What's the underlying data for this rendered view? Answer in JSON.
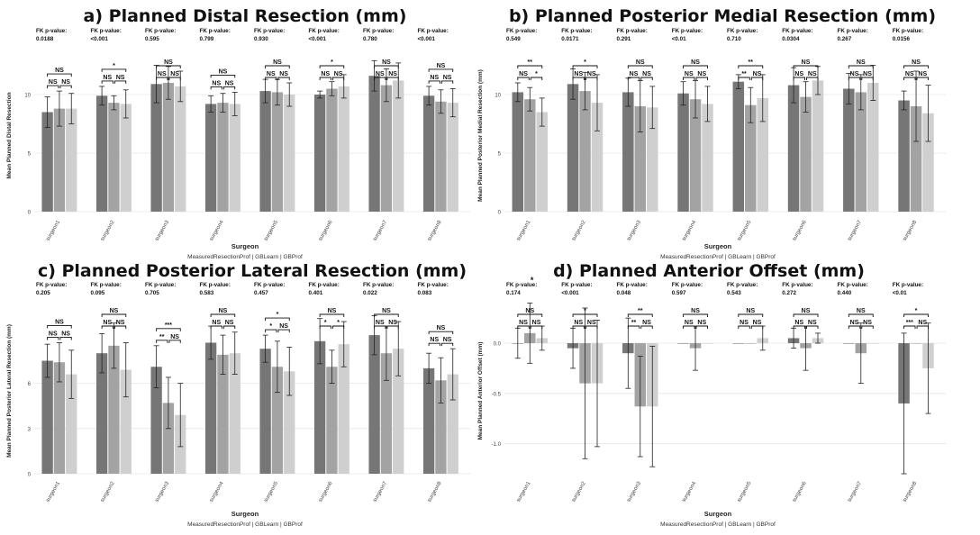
{
  "chart_data": [
    {
      "type": "bar",
      "title": "a) Planned Distal Resection (mm)",
      "xlabel": "Surgeon",
      "ylabel": "Mean Planned Distal Resection",
      "legend_text": "MeasuredResectionProf | GBLearn | GBProf",
      "categories": [
        "surgeon1",
        "surgeon2",
        "surgeon3",
        "surgeon4",
        "surgeon5",
        "surgeon6",
        "surgeon7",
        "surgeon8"
      ],
      "ylim": [
        0,
        13
      ],
      "yticks": [
        0,
        5,
        10
      ],
      "ytick_labels": [
        "0",
        "5",
        "10"
      ],
      "colors": [
        "#767676",
        "#a3a3a3",
        "#cfcfcf"
      ],
      "series": [
        {
          "name": "MeasuredResectionProf",
          "values": [
            8.5,
            9.9,
            10.9,
            9.2,
            10.3,
            10.0,
            11.6,
            9.9
          ],
          "err": [
            1.3,
            0.8,
            1.6,
            0.7,
            1.0,
            0.3,
            1.3,
            0.8
          ]
        },
        {
          "name": "GBLearn",
          "values": [
            8.8,
            9.3,
            11.0,
            9.3,
            10.2,
            10.5,
            10.8,
            9.4
          ],
          "err": [
            1.5,
            0.6,
            1.4,
            0.8,
            1.1,
            0.6,
            1.4,
            1.0
          ]
        },
        {
          "name": "GBProf",
          "values": [
            8.8,
            9.2,
            10.7,
            9.2,
            10.0,
            10.7,
            11.2,
            9.3
          ],
          "err": [
            1.3,
            1.2,
            1.3,
            1.0,
            1.0,
            1.0,
            1.5,
            1.2
          ]
        }
      ],
      "fk_labels": [
        "FK p-value:",
        "FK p-value:",
        "FK p-value:",
        "FK p-value:",
        "FK p-value:",
        "FK p-value:",
        "FK p-value:",
        "FK p-value:"
      ],
      "fk_values": [
        "0.0188",
        "<0.001",
        "0.595",
        "0.799",
        "0.930",
        "<0.001",
        "0.780",
        "<0.001"
      ],
      "sig": [
        [
          "NS",
          "NS",
          "NS"
        ],
        [
          "*",
          "NS",
          "NS"
        ],
        [
          "NS",
          "NS",
          "NS"
        ],
        [
          "NS",
          "NS",
          "NS"
        ],
        [
          "NS",
          "NS",
          "NS"
        ],
        [
          "*",
          "NS",
          "NS"
        ],
        [
          "NS",
          "NS",
          "NS"
        ],
        [
          "NS",
          "NS",
          "NS"
        ]
      ]
    },
    {
      "type": "bar",
      "title": "b) Planned Posterior Medial Resection (mm)",
      "xlabel": "Surgeon",
      "ylabel": "Mean Planned Posterior Medial Resection (mm)",
      "legend_text": "MeasuredResectionProf | GBLearn | GBProf",
      "categories": [
        "surgeon1",
        "surgeon2",
        "surgeon3",
        "surgeon4",
        "surgeon5",
        "surgeon6",
        "surgeon7",
        "surgeon8"
      ],
      "ylim": [
        0,
        13
      ],
      "yticks": [
        0,
        5,
        10
      ],
      "ytick_labels": [
        "0",
        "5",
        "10"
      ],
      "colors": [
        "#767676",
        "#a3a3a3",
        "#cfcfcf"
      ],
      "series": [
        {
          "name": "MeasuredResectionProf",
          "values": [
            10.2,
            10.9,
            10.2,
            10.1,
            11.1,
            10.8,
            10.5,
            9.5
          ],
          "err": [
            0.8,
            1.3,
            1.2,
            1.0,
            0.6,
            1.5,
            1.3,
            0.8
          ]
        },
        {
          "name": "GBLearn",
          "values": [
            9.6,
            10.3,
            9.0,
            9.6,
            9.1,
            9.8,
            10.2,
            9.0
          ],
          "err": [
            1.0,
            1.6,
            2.2,
            1.6,
            1.5,
            1.3,
            1.5,
            3.0
          ]
        },
        {
          "name": "GBProf",
          "values": [
            8.5,
            9.3,
            8.9,
            9.2,
            9.7,
            11.2,
            11.0,
            8.4
          ],
          "err": [
            1.2,
            2.4,
            1.8,
            1.5,
            2.0,
            1.2,
            1.5,
            2.4
          ]
        }
      ],
      "fk_labels": [
        "FK p-value:",
        "FK p-value:",
        "FK p-value:",
        "FK p-value:",
        "FK p-value:",
        "FK p-value:",
        "FK p-value:",
        "FK p-value:"
      ],
      "fk_values": [
        "0.549",
        "0.0171",
        "0.291",
        "<0.01",
        "0.710",
        "0.0304",
        "0.267",
        "0.0156"
      ],
      "sig": [
        [
          "**",
          "NS",
          "*"
        ],
        [
          "*",
          "NS",
          "NS"
        ],
        [
          "NS",
          "NS",
          "NS"
        ],
        [
          "NS",
          "NS",
          "NS"
        ],
        [
          "**",
          "**",
          "NS"
        ],
        [
          "NS",
          "NS",
          "NS"
        ],
        [
          "NS",
          "NS",
          "NS"
        ],
        [
          "NS",
          "NS",
          "NS"
        ]
      ]
    },
    {
      "type": "bar",
      "title": "c) Planned Posterior Lateral Resection (mm)",
      "xlabel": "Surgeon",
      "ylabel": "Mean Planned Posterior Lateral Resection (mm)",
      "legend_text": "MeasuredResectionProf | GBLearn | GBProf",
      "categories": [
        "surgeon1",
        "surgeon2",
        "surgeon3",
        "surgeon4",
        "surgeon5",
        "surgeon6",
        "surgeon7",
        "surgeon8"
      ],
      "ylim": [
        0,
        11
      ],
      "yticks": [
        0,
        3,
        6
      ],
      "ytick_labels": [
        "0",
        "3",
        "6"
      ],
      "colors": [
        "#767676",
        "#a3a3a3",
        "#cfcfcf"
      ],
      "series": [
        {
          "name": "MeasuredResectionProf",
          "values": [
            7.5,
            8.0,
            7.1,
            8.7,
            8.3,
            8.8,
            9.2,
            7.0
          ],
          "err": [
            1.1,
            1.3,
            1.4,
            1.1,
            0.9,
            1.5,
            1.3,
            1.0
          ]
        },
        {
          "name": "GBLearn",
          "values": [
            7.4,
            8.5,
            4.7,
            7.9,
            7.1,
            7.1,
            8.0,
            6.2
          ],
          "err": [
            1.3,
            1.5,
            1.7,
            1.3,
            1.7,
            1.1,
            1.8,
            1.5
          ]
        },
        {
          "name": "GBProf",
          "values": [
            6.6,
            6.9,
            3.9,
            8.0,
            6.8,
            8.6,
            8.3,
            6.6
          ],
          "err": [
            1.6,
            1.8,
            2.1,
            1.4,
            1.6,
            1.5,
            1.8,
            1.7
          ]
        }
      ],
      "fk_labels": [
        "FK p-value:",
        "FK p-value:",
        "FK p-value:",
        "FK p-value:",
        "FK p-value:",
        "FK p-value:",
        "FK p-value:",
        "FK p-value:"
      ],
      "fk_values": [
        "0.205",
        "0.095",
        "0.705",
        "0.583",
        "0.457",
        "0.401",
        "0.022",
        "0.083"
      ],
      "sig": [
        [
          "NS",
          "NS",
          "NS"
        ],
        [
          "NS",
          "NS",
          "NS"
        ],
        [
          "***",
          "**",
          "NS"
        ],
        [
          "NS",
          "NS",
          "NS"
        ],
        [
          "*",
          "*",
          "NS"
        ],
        [
          "NS",
          "*",
          "*"
        ],
        [
          "NS",
          "NS",
          "NS"
        ],
        [
          "NS",
          "NS",
          "NS"
        ]
      ]
    },
    {
      "type": "bar",
      "title": "d) Planned Anterior Offset (mm)",
      "xlabel": "Surgeon",
      "ylabel": "Mean Planned Anterior Offset (mm)",
      "legend_text": "MeasuredResectionProf | GBLearn | GBProf",
      "categories": [
        "surgeon1",
        "surgeon2",
        "surgeon3",
        "surgeon4",
        "surgeon5",
        "surgeon6",
        "surgeon7",
        "surgeon8"
      ],
      "ylim": [
        -1.3,
        0.35
      ],
      "yticks": [
        -1.0,
        -0.5,
        0.0
      ],
      "ytick_labels": [
        "-1.0",
        "-0.5",
        "0.0"
      ],
      "colors": [
        "#767676",
        "#a3a3a3",
        "#cfcfcf"
      ],
      "series": [
        {
          "name": "MeasuredResectionProf",
          "values": [
            0.0,
            -0.05,
            -0.1,
            0.0,
            0.0,
            0.05,
            0.0,
            -0.6
          ],
          "err": [
            0.15,
            0.2,
            0.35,
            0.0,
            0.0,
            0.1,
            0.0,
            0.7
          ]
        },
        {
          "name": "GBLearn",
          "values": [
            0.1,
            -0.4,
            -0.63,
            -0.05,
            0.0,
            -0.05,
            -0.1,
            0.0
          ],
          "err": [
            0.3,
            0.75,
            0.5,
            0.22,
            0.0,
            0.22,
            0.3,
            0.0
          ]
        },
        {
          "name": "GBProf",
          "values": [
            0.05,
            -0.4,
            -0.63,
            0.0,
            0.05,
            0.05,
            0.0,
            -0.25
          ],
          "err": [
            0.12,
            0.63,
            0.6,
            0.0,
            0.12,
            0.05,
            0.0,
            0.45
          ]
        }
      ],
      "fk_labels": [
        "FK p-value:",
        "FK p-value:",
        "FK p-value:",
        "FK p-value:",
        "FK p-value:",
        "FK p-value:",
        "FK p-value:",
        "FK p-value:"
      ],
      "fk_values": [
        "0.174",
        "<0.001",
        "0.048",
        "0.597",
        "0.543",
        "0.272",
        "0.440",
        "<0.01"
      ],
      "sig": [
        [
          "NS",
          "NS",
          "NS"
        ],
        [
          "*",
          "NS",
          "NS"
        ],
        [
          "**",
          "**",
          "NS"
        ],
        [
          "NS",
          "NS",
          "NS"
        ],
        [
          "NS",
          "NS",
          "NS"
        ],
        [
          "NS",
          "NS",
          "NS"
        ],
        [
          "NS",
          "NS",
          "NS"
        ],
        [
          "*",
          "***",
          "NS"
        ]
      ],
      "extra_marker": "*"
    }
  ]
}
